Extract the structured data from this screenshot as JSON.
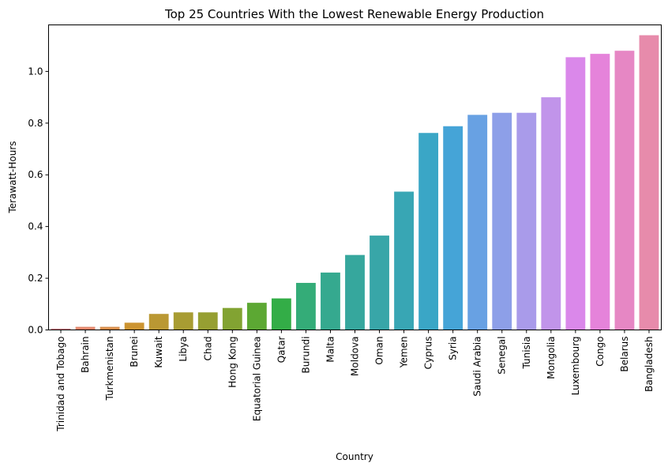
{
  "chart_data": {
    "type": "bar",
    "title": "Top 25 Countries With the Lowest Renewable Energy Production",
    "xlabel": "Country",
    "ylabel": "Terawatt-Hours",
    "ylim": [
      0,
      1.18
    ],
    "yticks": [
      "0.0",
      "0.2",
      "0.4",
      "0.6",
      "0.8",
      "1.0"
    ],
    "grid": false,
    "categories": [
      "Trinidad and Tobago",
      "Bahrain",
      "Turkmenistan",
      "Brunei",
      "Kuwait",
      "Libya",
      "Chad",
      "Hong Kong",
      "Equatorial Guinea",
      "Qatar",
      "Burundi",
      "Malta",
      "Moldova",
      "Oman",
      "Yemen",
      "Cyprus",
      "Syria",
      "Saudi Arabia",
      "Senegal",
      "Tunisia",
      "Mongolia",
      "Luxembourg",
      "Congo",
      "Belarus",
      "Bangladesh"
    ],
    "values": [
      0.005,
      0.012,
      0.012,
      0.028,
      0.062,
      0.068,
      0.068,
      0.085,
      0.105,
      0.122,
      0.182,
      0.222,
      0.29,
      0.365,
      0.535,
      0.762,
      0.788,
      0.832,
      0.84,
      0.84,
      0.9,
      1.055,
      1.068,
      1.08,
      1.14
    ],
    "colors": [
      "#e8828b",
      "#e4886d",
      "#d98f4d",
      "#cc9431",
      "#ba9833",
      "#a89c32",
      "#969f32",
      "#82a332",
      "#5ca833",
      "#33ad47",
      "#34ac78",
      "#35a98f",
      "#36a79d",
      "#38a6a8",
      "#38a6b4",
      "#3aa6c6",
      "#45a4d7",
      "#68a1e3",
      "#8d9fe8",
      "#a99bea",
      "#c194ea",
      "#da88ea",
      "#e583da",
      "#e687c4",
      "#e78bab"
    ]
  }
}
